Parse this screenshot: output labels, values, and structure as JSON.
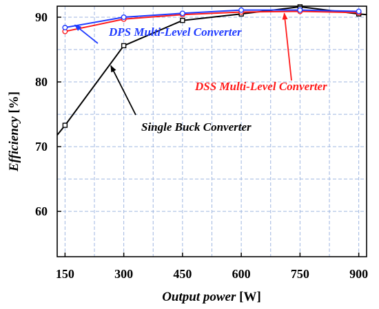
{
  "chart_data": {
    "type": "line",
    "xlabel": "Output power",
    "xlabel_unit": "[W]",
    "ylabel": "Efficiency",
    "ylabel_unit": "[%]",
    "xlim": [
      130,
      920
    ],
    "ylim": [
      53,
      91.7
    ],
    "xticks": [
      150,
      300,
      450,
      600,
      750,
      900
    ],
    "xtick_labels": [
      "150",
      "300",
      "450",
      "600",
      "750",
      "900"
    ],
    "yticks": [
      60,
      70,
      80,
      90
    ],
    "ytick_labels": [
      "60",
      "70",
      "80",
      "90"
    ],
    "grid": true,
    "grid_x_minor": [
      225,
      375,
      525,
      675,
      825
    ],
    "grid_y_minor": [
      65,
      75,
      85
    ],
    "colors": {
      "dps": "#1f3bff",
      "dss": "#ff1a1a",
      "buck": "#000000"
    },
    "series": [
      {
        "key": "dps",
        "name": "DPS Multi-Level Converter",
        "x": [
          150,
          300,
          450,
          600,
          750,
          900
        ],
        "values": [
          88.4,
          90.0,
          90.6,
          91.1,
          91.1,
          90.9
        ]
      },
      {
        "key": "dss",
        "name": "DSS Multi-Level Converter",
        "x": [
          150,
          300,
          450,
          600,
          750,
          900
        ],
        "values": [
          87.8,
          89.7,
          90.4,
          90.8,
          90.9,
          90.7
        ]
      },
      {
        "key": "buck",
        "name": "Single Buck Converter",
        "x": [
          130,
          150,
          300,
          450,
          600,
          750,
          900,
          920
        ],
        "values": [
          71.8,
          73.3,
          85.6,
          89.5,
          90.5,
          91.6,
          90.5,
          90.4
        ],
        "marker_x": [
          150,
          300,
          450,
          600,
          750,
          900
        ]
      }
    ],
    "annotations": [
      {
        "key": "dps",
        "text": "DPS Multi-Level Converter",
        "target": [
          175,
          88.8
        ]
      },
      {
        "key": "dss",
        "text": "DSS Multi-Level Converter",
        "target": [
          710,
          90.6
        ]
      },
      {
        "key": "buck",
        "text": "Single Buck Converter",
        "target": [
          267,
          82.5
        ]
      }
    ]
  }
}
